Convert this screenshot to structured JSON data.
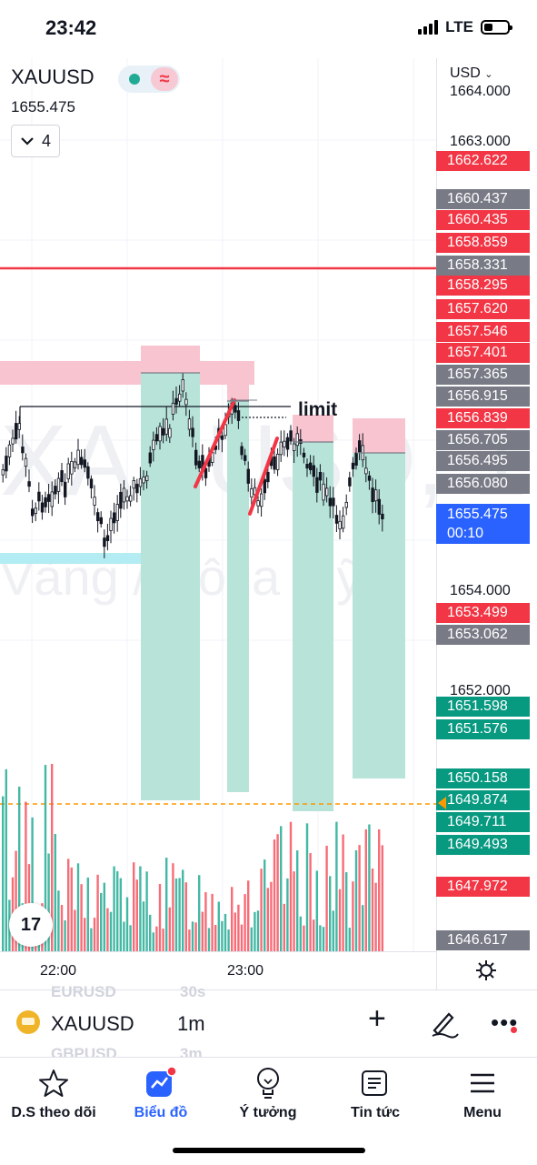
{
  "status": {
    "time": "23:42",
    "network": "LTE"
  },
  "symbol": {
    "name": "XAUUSD",
    "price": "1655.475",
    "studies_count": "4",
    "wave_glyph": "≈"
  },
  "watermark": {
    "symbol": "XAUUSD, 1",
    "description": "Vàng / Đô la Mỹ"
  },
  "drawing_label": "limit",
  "currency_selector": "USD",
  "price_axis": {
    "ticks": [
      "1664.000",
      "1663.000",
      "1654.000",
      "1652.000"
    ],
    "tags": [
      {
        "value": "1662.622",
        "color": "red"
      },
      {
        "value": "1660.437",
        "color": "gray"
      },
      {
        "value": "1660.435",
        "color": "red"
      },
      {
        "value": "1658.859",
        "color": "red"
      },
      {
        "value": "1658.331",
        "color": "gray"
      },
      {
        "value": "1658.295",
        "color": "red"
      },
      {
        "value": "1657.620",
        "color": "red"
      },
      {
        "value": "1657.546",
        "color": "red"
      },
      {
        "value": "1657.401",
        "color": "red"
      },
      {
        "value": "1657.365",
        "color": "gray"
      },
      {
        "value": "1656.915",
        "color": "gray"
      },
      {
        "value": "1656.839",
        "color": "red"
      },
      {
        "value": "1656.705",
        "color": "gray"
      },
      {
        "value": "1656.495",
        "color": "gray"
      },
      {
        "value": "1656.080",
        "color": "gray"
      },
      {
        "value": "1653.499",
        "color": "red"
      },
      {
        "value": "1653.062",
        "color": "gray"
      },
      {
        "value": "1651.598",
        "color": "green"
      },
      {
        "value": "1651.576",
        "color": "green"
      },
      {
        "value": "1650.158",
        "color": "green"
      },
      {
        "value": "1649.874",
        "color": "green"
      },
      {
        "value": "1649.711",
        "color": "green"
      },
      {
        "value": "1649.493",
        "color": "green"
      },
      {
        "value": "1647.972",
        "color": "red"
      },
      {
        "value": "1646.617",
        "color": "gray"
      }
    ],
    "current": {
      "value": "1655.475",
      "countdown": "00:10"
    }
  },
  "time_axis": [
    "22:00",
    "23:00"
  ],
  "toolbar": {
    "symbol": "XAUUSD",
    "interval": "1m",
    "ghost_symbols": [
      "EURUSD",
      "GBPUSD"
    ],
    "ghost_intervals": [
      "30s",
      "3m"
    ]
  },
  "nav": [
    {
      "label": "D.S theo dõi",
      "icon": "star-icon"
    },
    {
      "label": "Biểu đồ",
      "icon": "chart-icon"
    },
    {
      "label": "Ý tưởng",
      "icon": "lightbulb-icon"
    },
    {
      "label": "Tin tức",
      "icon": "news-icon"
    },
    {
      "label": "Menu",
      "icon": "menu-icon"
    }
  ],
  "colors": {
    "up": "#089981",
    "down": "#f23645",
    "accent": "#2962ff",
    "sl_zone": "#f7c4cf",
    "tp_zone": "#b7e3d9",
    "support": "#b3ecf3",
    "alert_line": "#ff9800"
  }
}
